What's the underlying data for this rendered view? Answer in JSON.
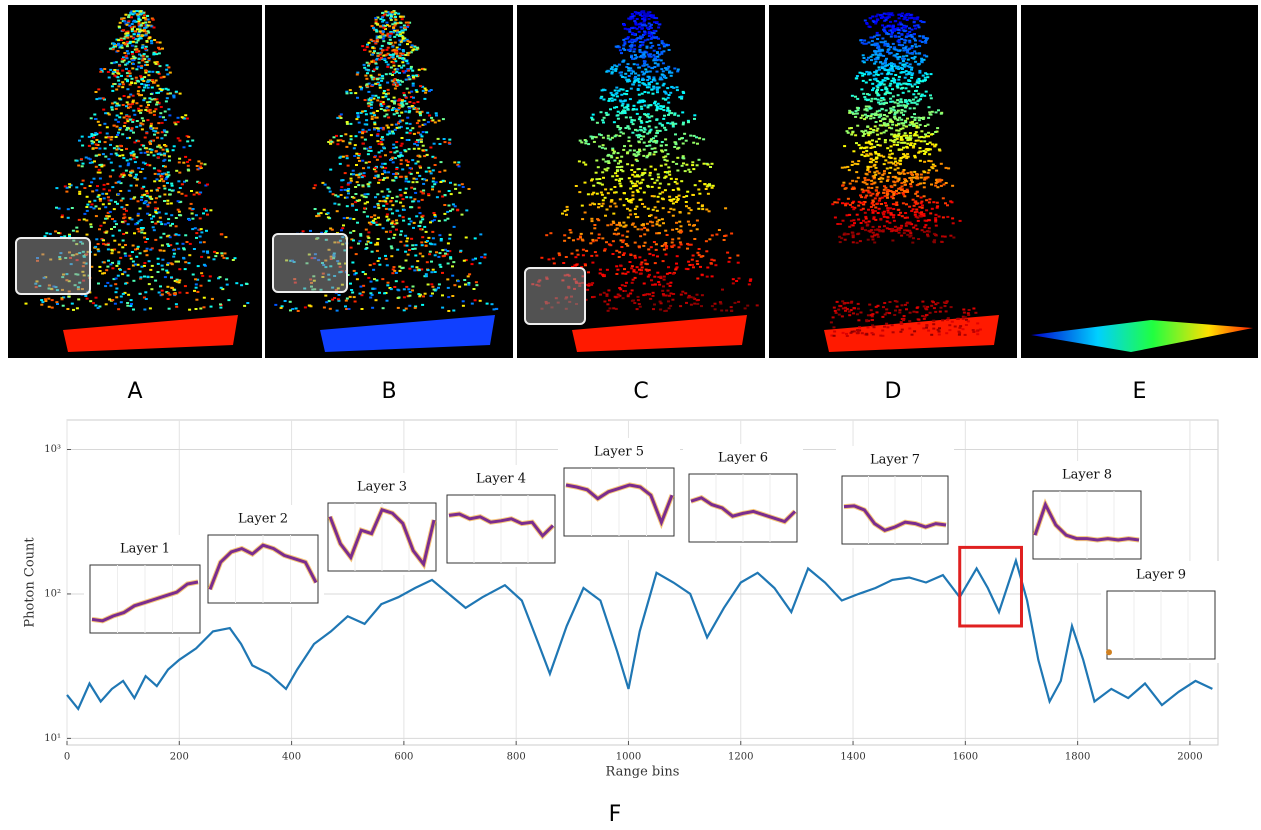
{
  "panels": [
    "A",
    "B",
    "C",
    "D",
    "E"
  ],
  "chart_label": "F",
  "chart_data": {
    "type": "line",
    "log_y": true,
    "grid": true,
    "color": "#1f77b4",
    "xlabel": "Range bins",
    "ylabel": "Photon Count",
    "xlim": [
      0,
      2050
    ],
    "xticks": [
      0,
      200,
      400,
      600,
      800,
      1000,
      1200,
      1400,
      1600,
      1800,
      2000
    ],
    "ylim": [
      9,
      1600
    ],
    "yticks": [
      {
        "value": 10,
        "label": "10¹"
      },
      {
        "value": 100,
        "label": "10²"
      },
      {
        "value": 1000,
        "label": "10³"
      }
    ],
    "x": [
      0,
      20,
      40,
      60,
      80,
      100,
      120,
      140,
      160,
      180,
      200,
      230,
      260,
      290,
      310,
      330,
      360,
      390,
      410,
      440,
      470,
      500,
      530,
      560,
      590,
      620,
      650,
      680,
      710,
      740,
      780,
      810,
      840,
      860,
      890,
      920,
      950,
      980,
      1000,
      1020,
      1050,
      1080,
      1110,
      1140,
      1170,
      1200,
      1230,
      1260,
      1290,
      1320,
      1350,
      1380,
      1410,
      1440,
      1470,
      1500,
      1530,
      1560,
      1590,
      1620,
      1640,
      1660,
      1690,
      1710,
      1730,
      1750,
      1770,
      1790,
      1810,
      1830,
      1860,
      1890,
      1920,
      1950,
      1980,
      2010,
      2040
    ],
    "values": [
      20,
      16,
      24,
      18,
      22,
      25,
      19,
      27,
      23,
      30,
      35,
      42,
      55,
      58,
      45,
      32,
      28,
      22,
      30,
      45,
      55,
      70,
      62,
      85,
      95,
      110,
      125,
      100,
      80,
      95,
      115,
      90,
      45,
      28,
      60,
      110,
      90,
      40,
      22,
      55,
      140,
      120,
      100,
      50,
      80,
      120,
      140,
      110,
      75,
      150,
      120,
      90,
      100,
      110,
      125,
      130,
      120,
      135,
      95,
      150,
      110,
      75,
      170,
      90,
      35,
      18,
      25,
      60,
      35,
      18,
      22,
      19,
      24,
      17,
      21,
      25,
      22
    ],
    "highlight": {
      "x": [
        1590,
        1700
      ],
      "y": [
        60,
        210
      ]
    },
    "insets": [
      {
        "label": "Layer 1",
        "values": [
          0.2,
          0.18,
          0.25,
          0.3,
          0.4,
          0.45,
          0.5,
          0.55,
          0.6,
          0.72,
          0.75
        ]
      },
      {
        "label": "Layer 2",
        "values": [
          0.2,
          0.6,
          0.75,
          0.8,
          0.72,
          0.85,
          0.8,
          0.7,
          0.65,
          0.6,
          0.3
        ]
      },
      {
        "label": "Layer 3",
        "values": [
          0.8,
          0.4,
          0.2,
          0.6,
          0.55,
          0.9,
          0.85,
          0.7,
          0.3,
          0.1,
          0.75
        ]
      },
      {
        "label": "Layer 4",
        "values": [
          0.7,
          0.72,
          0.65,
          0.68,
          0.6,
          0.62,
          0.65,
          0.58,
          0.6,
          0.4,
          0.55
        ]
      },
      {
        "label": "Layer 5",
        "values": [
          0.75,
          0.72,
          0.68,
          0.55,
          0.65,
          0.7,
          0.75,
          0.72,
          0.6,
          0.2,
          0.6
        ]
      },
      {
        "label": "Layer 6",
        "values": [
          0.6,
          0.65,
          0.55,
          0.5,
          0.38,
          0.42,
          0.45,
          0.4,
          0.35,
          0.3,
          0.45
        ]
      },
      {
        "label": "Layer 7",
        "values": [
          0.55,
          0.56,
          0.5,
          0.3,
          0.2,
          0.25,
          0.32,
          0.3,
          0.25,
          0.3,
          0.28
        ]
      },
      {
        "label": "Layer 8",
        "values": [
          0.35,
          0.8,
          0.5,
          0.35,
          0.3,
          0.3,
          0.28,
          0.3,
          0.28,
          0.3,
          0.28
        ]
      },
      {
        "label": "Layer 9",
        "values": [
          0.1
        ]
      }
    ]
  }
}
